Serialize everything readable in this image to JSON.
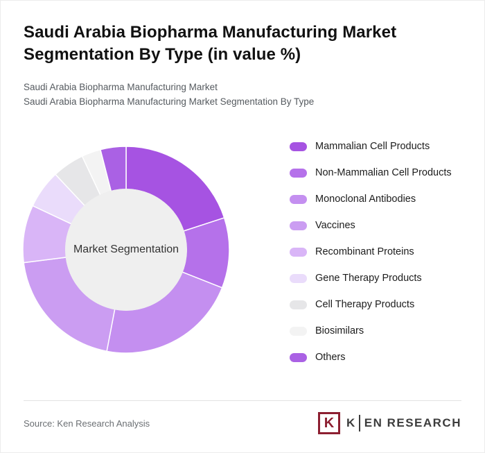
{
  "header": {
    "title": "Saudi Arabia Biopharma Manufacturing Market Segmentation By Type (in value %)",
    "subtitle1": "Saudi Arabia Biopharma Manufacturing Market",
    "subtitle2": "Saudi Arabia Biopharma Manufacturing Market Segmentation By Type"
  },
  "chart_data": {
    "type": "pie",
    "variant": "donut",
    "title": "Saudi Arabia Biopharma Manufacturing Market Segmentation By Type (in value %)",
    "center_label": "Market Segmentation",
    "legend_position": "right",
    "categories": [
      "Mammalian Cell Products",
      "Non-Mammalian Cell Products",
      "Monoclonal Antibodies",
      "Vaccines",
      "Recombinant Proteins",
      "Gene Therapy Products",
      "Cell Therapy Products",
      "Biosimilars",
      "Others"
    ],
    "values": [
      20,
      11,
      22,
      20,
      9,
      6,
      5,
      3,
      4
    ],
    "colors": [
      "#a653e2",
      "#b571ea",
      "#c48ff0",
      "#cb9df2",
      "#d9b5f7",
      "#eadcfb",
      "#e6e6e8",
      "#f3f3f3",
      "#aa61e4"
    ],
    "center_fill": "#efefef"
  },
  "footer": {
    "source": "Source: Ken Research Analysis",
    "logo": {
      "icon_letter": "K",
      "brand_k": "K",
      "brand_rest": "EN RESEARCH",
      "brand_color": "#8d1f31"
    }
  }
}
